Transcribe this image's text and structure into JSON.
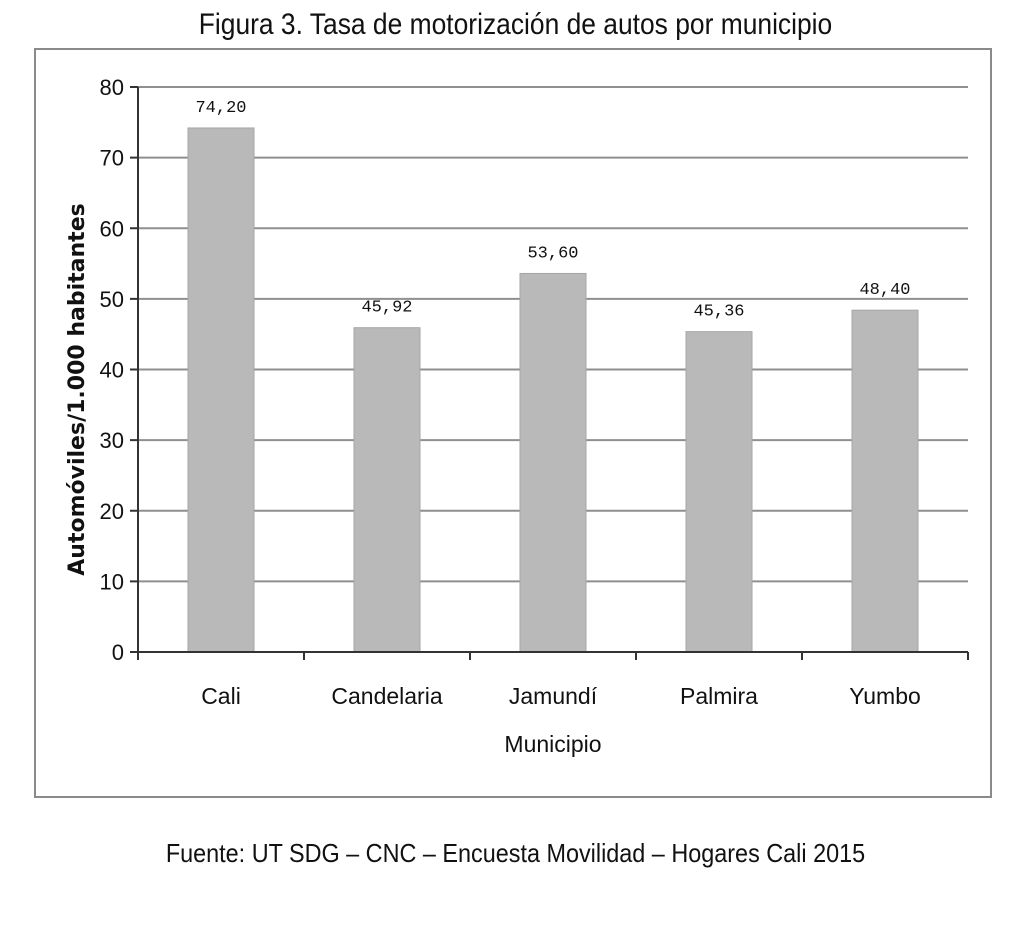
{
  "figure": {
    "title": "Figura 3. Tasa de motorización de autos por municipio",
    "source": "Fuente: UT SDG – CNC – Encuesta Movilidad – Hogares Cali 2015"
  },
  "chart_data": {
    "type": "bar",
    "categories": [
      "Cali",
      "Candelaria",
      "Jamundí",
      "Palmira",
      "Yumbo"
    ],
    "values": [
      74.2,
      45.92,
      53.6,
      45.36,
      48.4
    ],
    "value_labels": [
      "74,20",
      "45,92",
      "53,60",
      "45,36",
      "48,40"
    ],
    "xlabel": "Municipio",
    "ylabel": "Automóviles/1.000 habitantes",
    "ylim": [
      0,
      80
    ],
    "yticks": [
      0,
      10,
      20,
      30,
      40,
      50,
      60,
      70,
      80
    ],
    "grid": true,
    "legend": "none",
    "colors": {
      "bar": "#b9b9b9",
      "grid": "#8f8f8f",
      "axis": "#333333",
      "text": "#111111"
    }
  }
}
